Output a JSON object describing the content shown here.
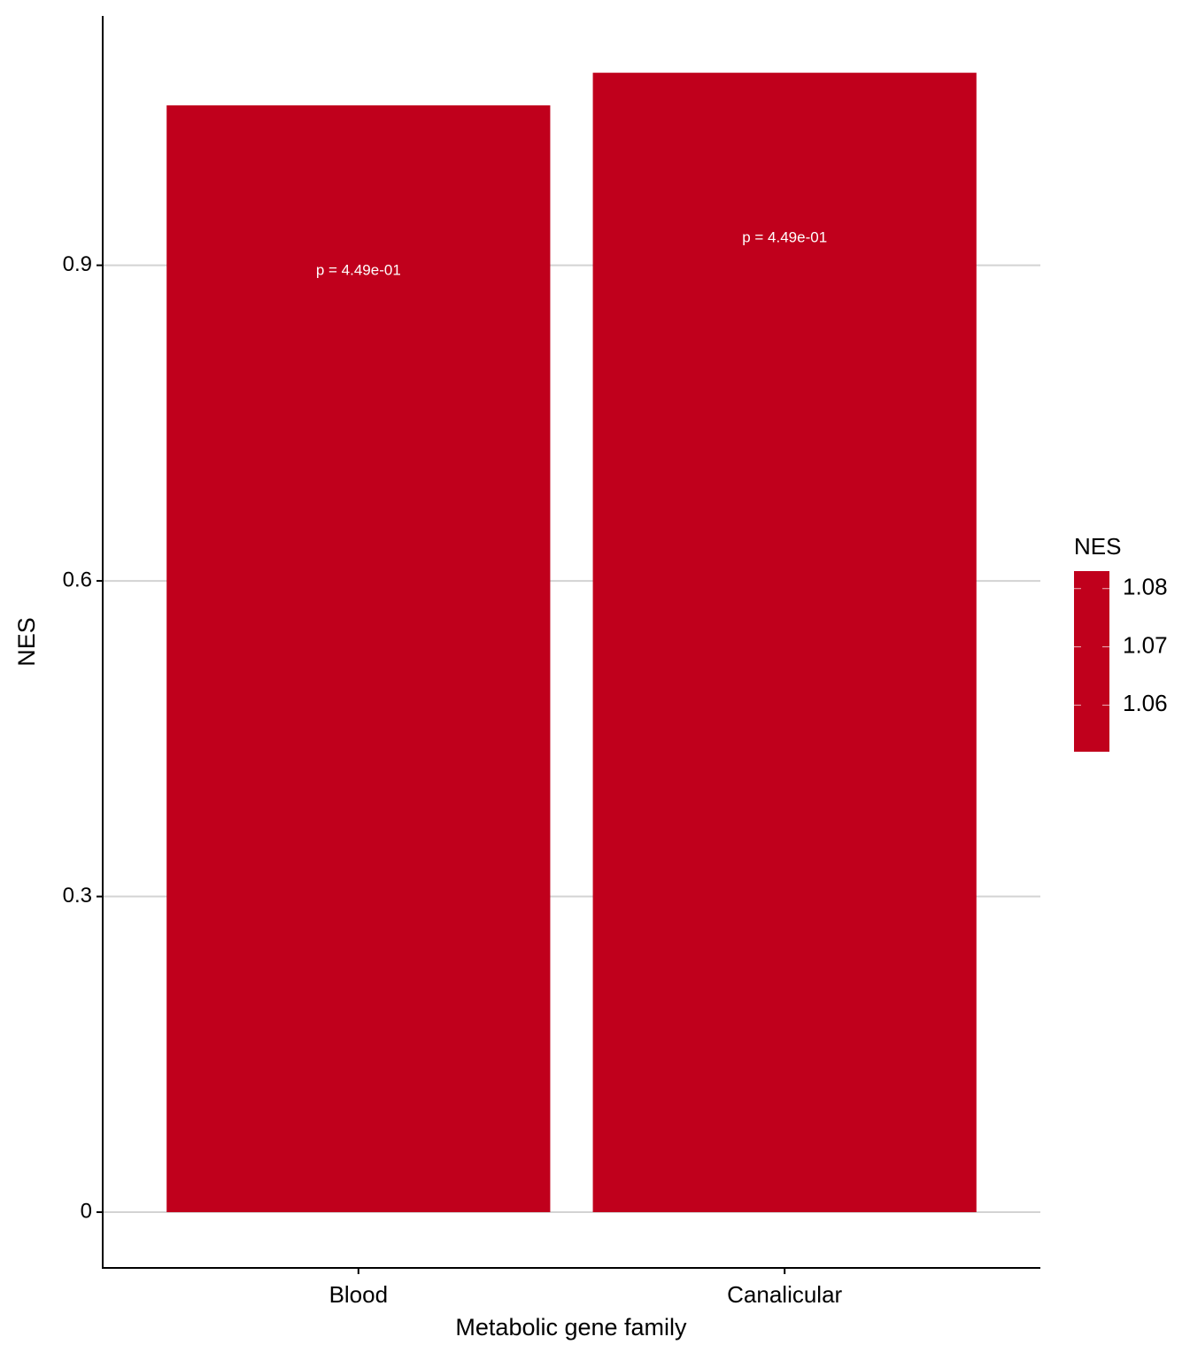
{
  "chart_data": {
    "type": "bar",
    "x_label": "Metabolic gene family",
    "y_label": "NES",
    "categories": [
      "Blood",
      "Canalicular"
    ],
    "values": [
      1.052,
      1.083
    ],
    "annotations": [
      "p =  4.49e-01",
      "p =  4.49e-01"
    ],
    "color": "#c0001c",
    "ylim": [
      -0.053,
      1.137
    ],
    "yticks": [
      0.0,
      0.3,
      0.6,
      0.9
    ],
    "grid": true,
    "legend": {
      "title": "NES",
      "ticks": [
        1.06,
        1.07,
        1.08
      ]
    }
  }
}
